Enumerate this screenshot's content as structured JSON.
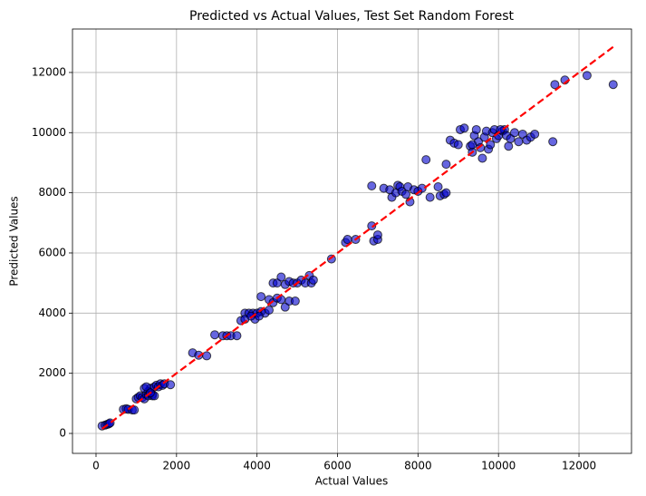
{
  "chart_data": {
    "type": "scatter",
    "title": "Predicted vs Actual Values, Test Set Random Forest",
    "x_label": "Actual Values",
    "y_label": "Predicted Values",
    "xlim": [
      -585,
      13305
    ],
    "ylim": [
      -663,
      13445
    ],
    "xticks": [
      0,
      2000,
      4000,
      6000,
      8000,
      10000,
      12000
    ],
    "yticks": [
      0,
      2000,
      4000,
      6000,
      8000,
      10000,
      12000
    ],
    "grid": true,
    "series": [
      {
        "color": "#0000cc",
        "x": [
          150,
          230,
          280,
          320,
          350,
          680,
          750,
          800,
          900,
          950,
          1000,
          1050,
          1100,
          1150,
          1200,
          1250,
          1300,
          1300,
          1350,
          1400,
          1450,
          1500,
          1550,
          1600,
          1650,
          1700,
          1850,
          1200,
          1250,
          1400,
          1450,
          1350,
          2400,
          2550,
          2750,
          2950,
          3150,
          3250,
          3350,
          3500,
          3600,
          3700,
          3800,
          3900,
          4000,
          4100,
          4200,
          4300,
          3950,
          3700,
          3850,
          4050,
          4100,
          4300,
          4400,
          4500,
          4600,
          4700,
          4800,
          4950,
          4400,
          4500,
          4600,
          4700,
          4800,
          4900,
          5000,
          5100,
          5200,
          5300,
          5350,
          5400,
          5850,
          6200,
          6250,
          6450,
          6850,
          6900,
          7000,
          7000,
          6850,
          7150,
          7300,
          7350,
          7450,
          7500,
          7550,
          7600,
          7700,
          7750,
          7800,
          7900,
          8000,
          8100,
          8200,
          8300,
          8500,
          8550,
          8650,
          8700,
          8700,
          8800,
          8900,
          9000,
          9050,
          9150,
          9300,
          9350,
          9400,
          9450,
          9500,
          9550,
          9600,
          9650,
          9700,
          9750,
          9800,
          9850,
          9900,
          9950,
          10000,
          10100,
          10150,
          10200,
          10250,
          10300,
          10400,
          10500,
          10600,
          10700,
          10800,
          10900,
          11350,
          11400,
          11650,
          12200,
          12850,
          10050,
          9350
        ],
        "values": [
          250,
          280,
          300,
          320,
          350,
          800,
          820,
          800,
          780,
          780,
          1150,
          1200,
          1250,
          1200,
          1150,
          1300,
          1400,
          1250,
          1500,
          1300,
          1550,
          1600,
          1550,
          1650,
          1600,
          1650,
          1620,
          1500,
          1550,
          1250,
          1250,
          1350,
          2680,
          2600,
          2580,
          3280,
          3250,
          3250,
          3250,
          3250,
          3750,
          4000,
          4000,
          4000,
          4000,
          4050,
          4000,
          4100,
          3800,
          3800,
          3900,
          3900,
          4550,
          4450,
          4350,
          4500,
          4450,
          4200,
          4400,
          4400,
          5000,
          5000,
          5200,
          4950,
          5050,
          5000,
          5000,
          5100,
          5000,
          5250,
          5000,
          5100,
          5800,
          6350,
          6450,
          6450,
          6900,
          6400,
          6450,
          6600,
          8230,
          8150,
          8100,
          7850,
          8000,
          8250,
          8200,
          8050,
          7950,
          8200,
          7700,
          8100,
          8050,
          8150,
          9100,
          7850,
          8200,
          7900,
          7950,
          8000,
          8950,
          9750,
          9650,
          9600,
          10100,
          10150,
          9550,
          9350,
          9900,
          10100,
          9700,
          9500,
          9150,
          9850,
          10050,
          9450,
          9600,
          10000,
          10100,
          9800,
          9900,
          10050,
          10100,
          9900,
          9550,
          9800,
          10000,
          9700,
          9950,
          9750,
          9850,
          9950,
          9700,
          11600,
          11750,
          11900,
          11600,
          10100,
          9600
        ]
      }
    ],
    "reference_line": {
      "x": [
        150,
        12850
      ],
      "y": [
        150,
        12850
      ],
      "color": "#ff0000"
    }
  }
}
